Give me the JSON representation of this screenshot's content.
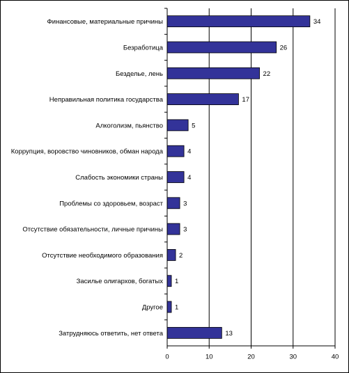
{
  "chart_data": {
    "type": "barh",
    "categories": [
      "Финансовые, материальные причины",
      "Безработица",
      "Безделье, лень",
      "Неправильная политика государства",
      "Алкоголизм, пьянство",
      "Коррупция, воровство чиновников, обман народа",
      "Слабость экономики страны",
      "Проблемы со здоровьем, возраст",
      "Отсутствие обязательности, личные причины",
      "Отсутствие необходимого образования",
      "Засилье олигархов, богатых",
      "Другое",
      "Затрудняюсь ответить, нет ответа"
    ],
    "values": [
      34,
      26,
      22,
      17,
      5,
      4,
      4,
      3,
      3,
      2,
      1,
      1,
      13
    ],
    "color": "#333399",
    "xlim": [
      0,
      40
    ],
    "xticks": [
      0,
      10,
      20,
      30,
      40
    ],
    "grid": true
  }
}
